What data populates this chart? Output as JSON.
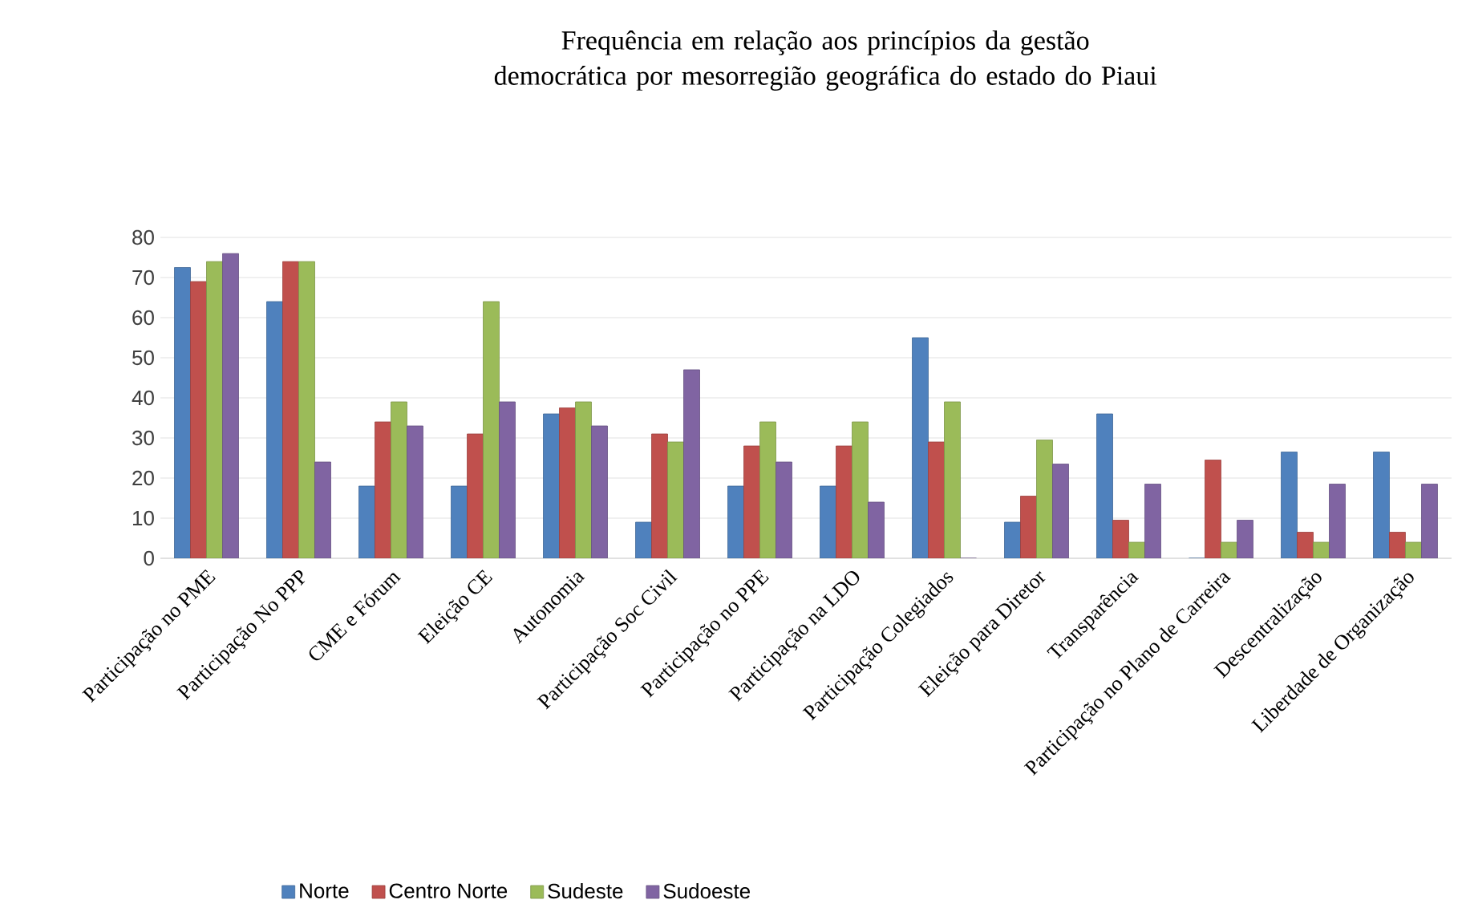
{
  "chart_data": {
    "type": "bar",
    "title": "Frequência em relação aos princípios  da gestão democrática por mesorregião geográfica do estado do Piaui",
    "categories": [
      "Participação no PME",
      "Participação No PPP",
      "CME e Fórum",
      "Eleição CE",
      "Autonomia",
      "Participação Soc Civil",
      "Participação no PPE",
      "Participação na LDO",
      "Participação Colegiados",
      "Eleição para Diretor",
      "Transparência",
      "Participação no Plano de Carreira",
      "Descentralização",
      "Liberdade de Organização"
    ],
    "series": [
      {
        "name": "Norte",
        "color": "#4f81bd",
        "values": [
          72.5,
          64,
          18,
          18,
          36,
          9,
          18,
          18,
          55,
          9,
          36,
          0,
          26.5,
          26.5
        ]
      },
      {
        "name": "Centro Norte",
        "color": "#c0504d",
        "values": [
          69,
          74,
          34,
          31,
          37.5,
          31,
          28,
          28,
          29,
          15.5,
          9.5,
          24.5,
          6.5,
          6.5
        ]
      },
      {
        "name": "Sudeste",
        "color": "#9bbb59",
        "values": [
          74,
          74,
          39,
          64,
          39,
          29,
          34,
          34,
          39,
          29.5,
          4,
          4,
          4,
          4
        ]
      },
      {
        "name": "Sudoeste",
        "color": "#8064a2",
        "values": [
          76,
          24,
          33,
          39,
          33,
          47,
          24,
          14,
          0,
          23.5,
          18.5,
          9.5,
          18.5,
          18.5
        ]
      }
    ],
    "ylim": [
      0,
      80
    ],
    "yticks": [
      0,
      10,
      20,
      30,
      40,
      50,
      60,
      70,
      80
    ],
    "grid": "y",
    "legend": "bottom"
  }
}
